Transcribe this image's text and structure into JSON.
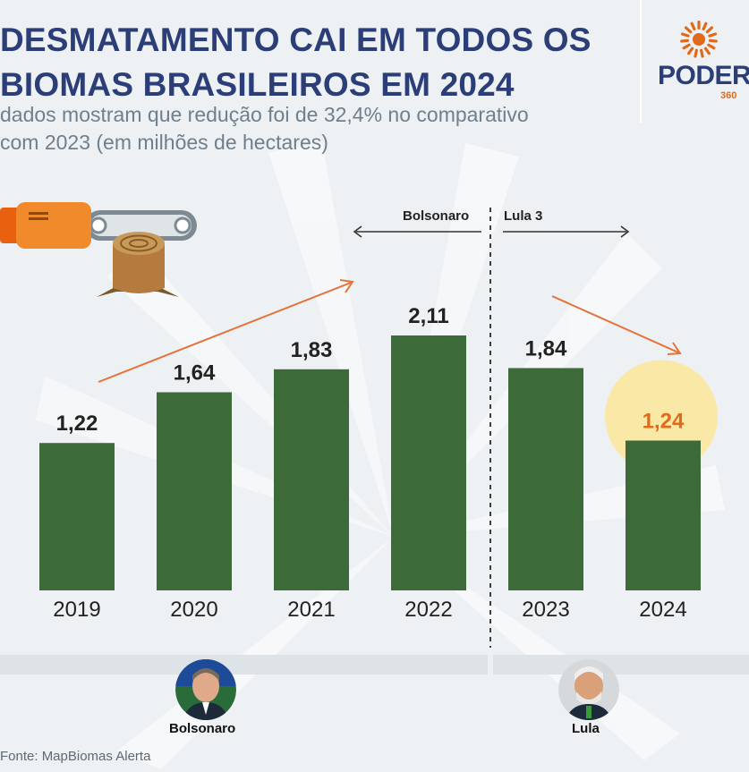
{
  "header": {
    "title_line1": "DESMATAMENTO CAI EM TODOS OS",
    "title_line2": "BIOMAS BRASILEIROS EM 2024",
    "subtitle_line1": "dados mostram que redução foi de 32,4% no comparativo",
    "subtitle_line2": "com 2023 (em milhões de hectares)"
  },
  "logo": {
    "word": "PODER",
    "sub": "360",
    "icon": "sun-icon"
  },
  "periods": {
    "left": "Bolsonaro",
    "right": "Lula 3"
  },
  "people": [
    {
      "name": "Bolsonaro",
      "icon": "bolsonaro-avatar"
    },
    {
      "name": "Lula",
      "icon": "lula-avatar"
    }
  ],
  "source": "Fonte: MapBiomas Alerta",
  "colors": {
    "bar": "#3c6b39",
    "title": "#2c3e78",
    "highlight": "#e06a1a",
    "highlight_glow": "#f9e8a6",
    "arrow": "#e4733a"
  },
  "chart_data": {
    "type": "bar",
    "categories": [
      "2019",
      "2020",
      "2021",
      "2022",
      "2023",
      "2024"
    ],
    "values": [
      1.22,
      1.64,
      1.83,
      2.11,
      1.84,
      1.24
    ],
    "value_labels": [
      "1,22",
      "1,64",
      "1,83",
      "2,11",
      "1,84",
      "1,24"
    ],
    "highlight_index": 5,
    "title": "",
    "xlabel": "",
    "ylabel": "",
    "ylim": [
      0,
      2.11
    ],
    "grid": false,
    "annotations": [
      "Bolsonaro",
      "Lula 3"
    ]
  }
}
